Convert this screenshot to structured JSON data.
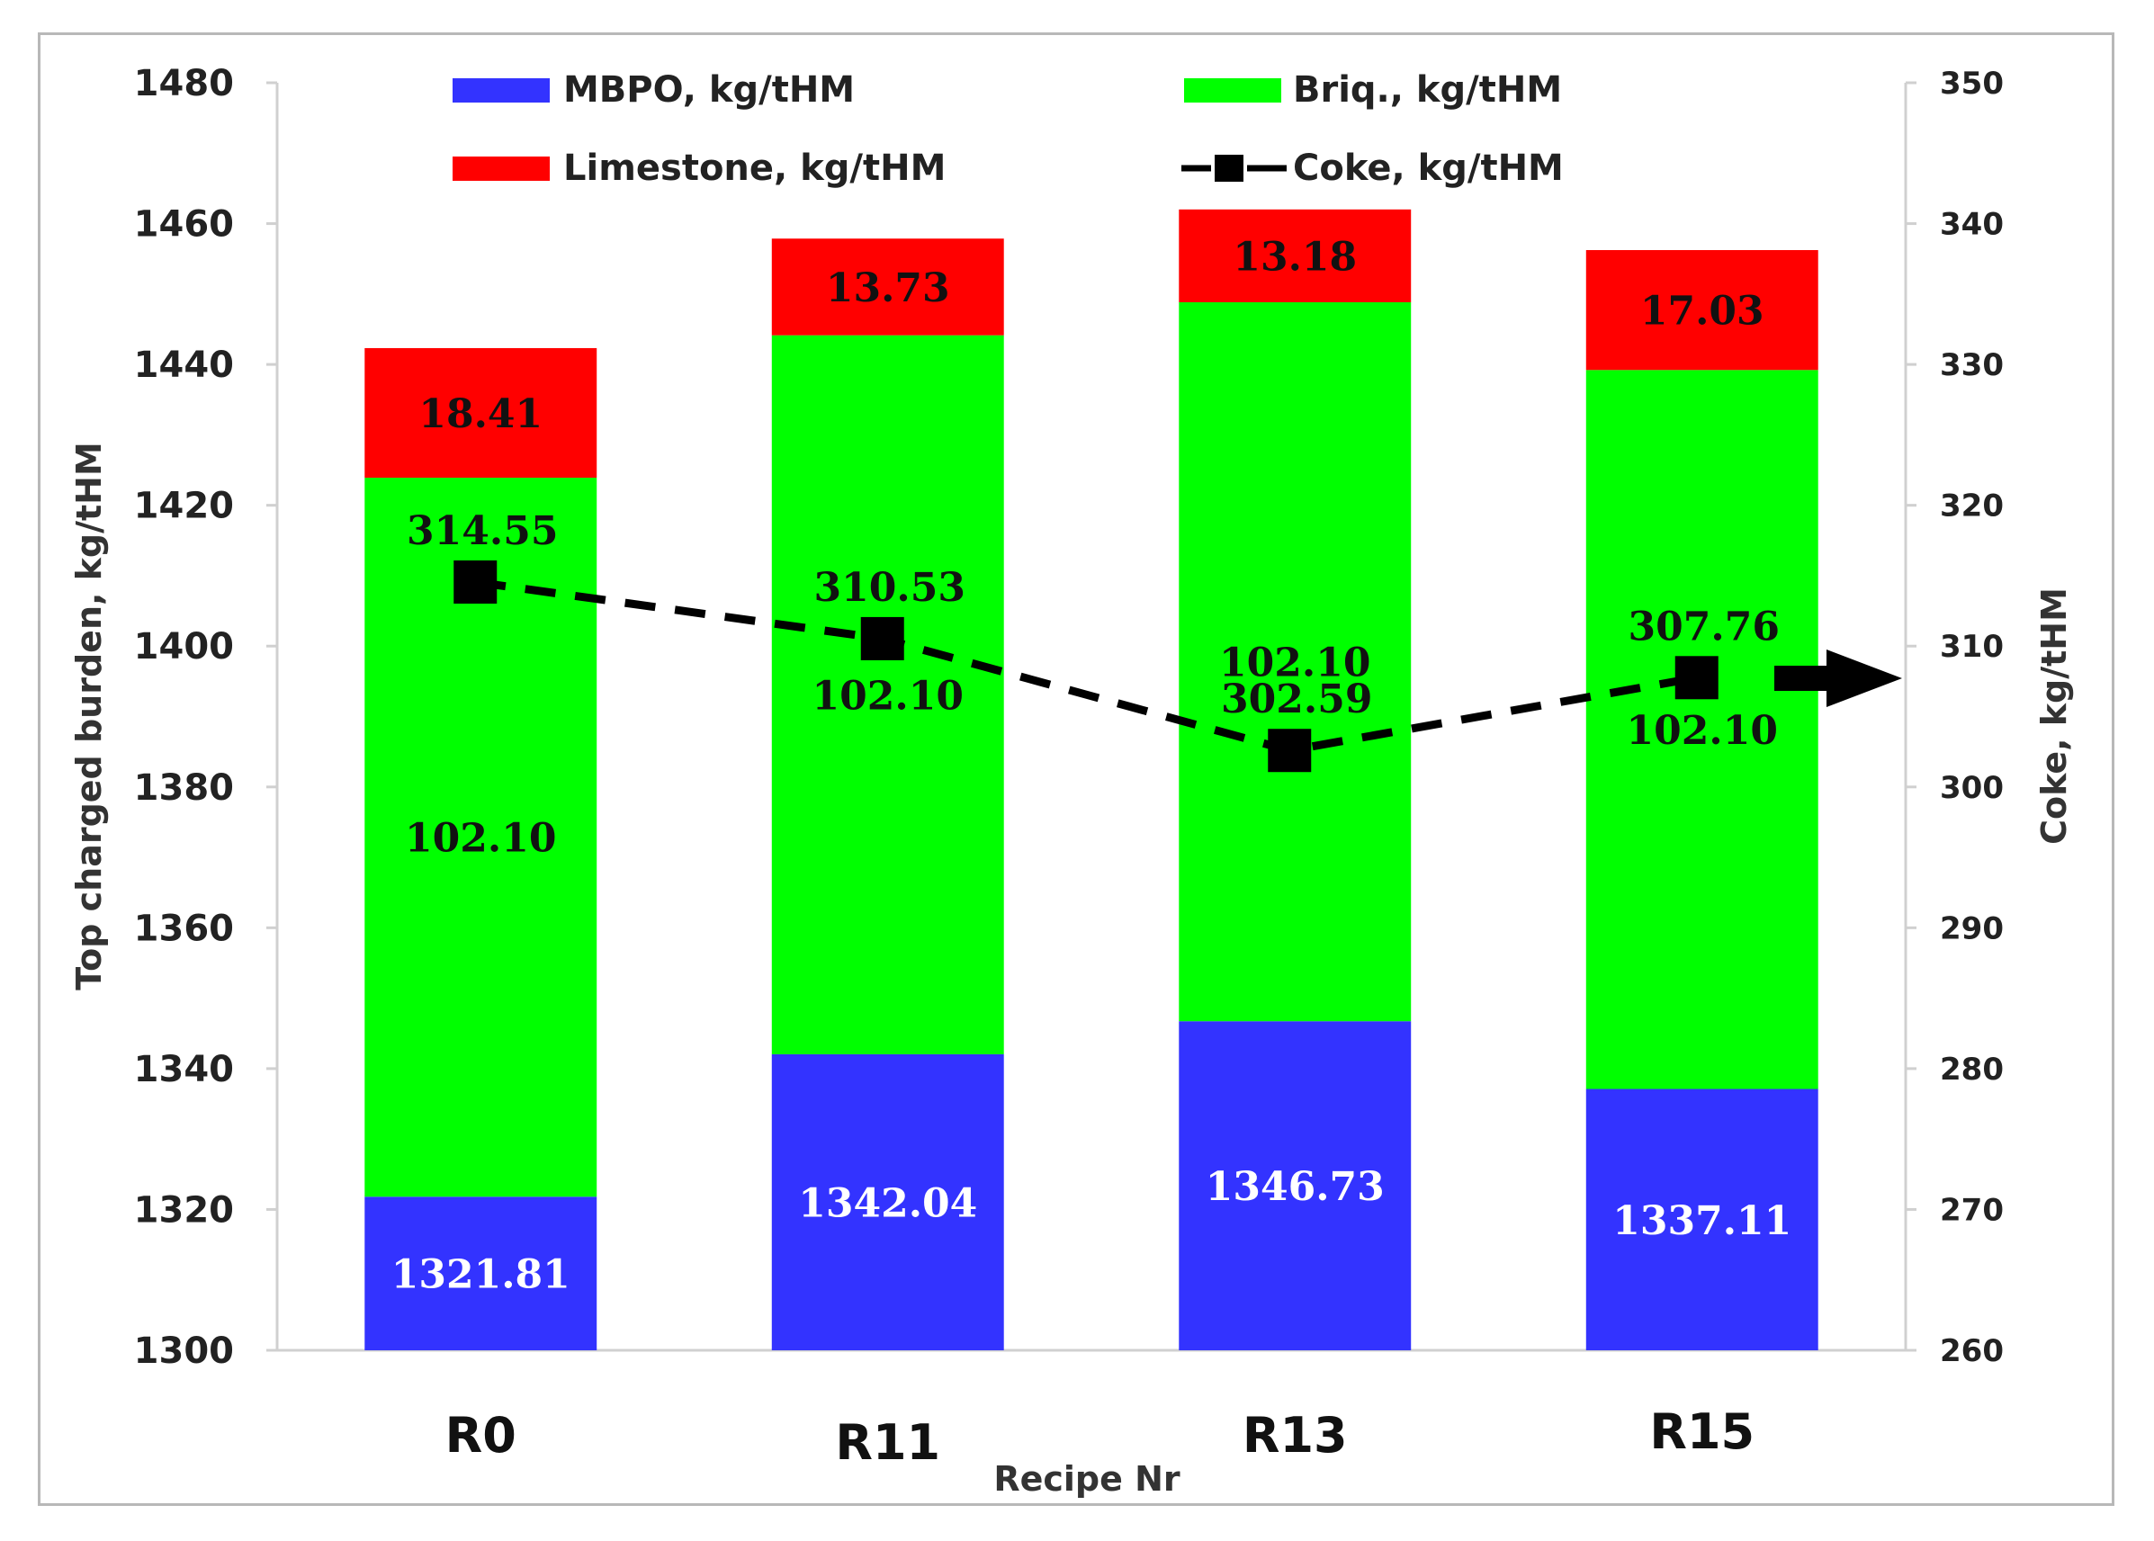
{
  "chart_data": {
    "type": "bar",
    "stacked": true,
    "title": "",
    "xlabel": "Recipe Nr",
    "ylabel": "Top charged burden, kg/tHM",
    "y2label": "Coke, kg/tHM",
    "ylim": [
      1300,
      1480
    ],
    "y2lim": [
      260,
      350
    ],
    "yticks": [
      1300,
      1320,
      1340,
      1360,
      1380,
      1400,
      1420,
      1440,
      1460,
      1480
    ],
    "y2ticks": [
      260,
      270,
      280,
      290,
      300,
      310,
      320,
      330,
      340,
      350
    ],
    "categories": [
      "R0",
      "R11",
      "R13",
      "R15"
    ],
    "series": [
      {
        "name": "MBPO, kg/tHM",
        "color": "#3333ff",
        "label_color": "#ffffff",
        "values": [
          1321.81,
          1342.04,
          1346.73,
          1337.11
        ],
        "labels": [
          "1321.81",
          "1342.04",
          "1346.73",
          "1337.11"
        ]
      },
      {
        "name": "Briq., kg/tHM",
        "color": "#00ff00",
        "label_color": "#111111",
        "values": [
          102.1,
          102.1,
          102.1,
          102.1
        ],
        "labels": [
          "102.10",
          "102.10",
          "102.10",
          "102.10"
        ]
      },
      {
        "name": "Limestone, kg/tHM",
        "color": "#ff0000",
        "label_color": "#111111",
        "values": [
          18.41,
          13.73,
          13.18,
          17.03
        ],
        "labels": [
          "18.41",
          "13.73",
          "13.18",
          "17.03"
        ]
      }
    ],
    "line_series": {
      "name": "Coke, kg/tHM",
      "axis": "secondary",
      "color": "#000000",
      "values": [
        314.55,
        310.53,
        302.59,
        307.76
      ],
      "labels": [
        "314.55",
        "310.53",
        "302.59",
        "307.76"
      ]
    },
    "legend_position": "top"
  }
}
